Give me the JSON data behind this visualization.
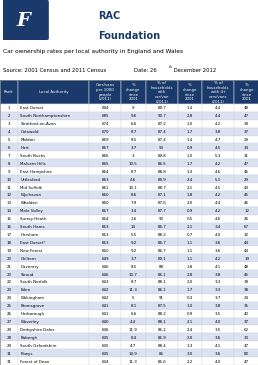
{
  "title_line1": "Car ownership rates per local authority in England and Wales",
  "source": "Source: 2001 Census and 2011 Census",
  "date": "Date: 26",
  "date_super": "th",
  "date_rest": " December 2012",
  "col_headers": [
    "Rank",
    "Local Authority",
    "Cars/vans\nper 1000\npeople\n(2011)",
    "%\nchange\nsince\n2001",
    "% of\nhouseholds\nwith\ncar/van\n(2011)",
    "%\nchange\nsince\n2001",
    "% of\nhouseholds\nwith 4+\ncars/vans\n(2011)",
    "%\nchange\nsince\n2001"
  ],
  "rows": [
    [
      1,
      "East Dorset",
      694,
      9,
      89.7,
      1.4,
      4.4,
      48
    ],
    [
      2,
      "South Northamptonshire",
      685,
      9.6,
      90.7,
      2.8,
      4.4,
      47
    ],
    [
      3,
      "Stratford-on-Avon",
      674,
      6.6,
      87.2,
      1.0,
      4.2,
      39
    ],
    [
      4,
      "Cotswold",
      670,
      8.7,
      87.4,
      1.7,
      3.8,
      37
    ],
    [
      5,
      "Maldon",
      669,
      8.5,
      87.4,
      1.4,
      4.7,
      29
    ],
    [
      6,
      "Hart",
      667,
      3.7,
      93,
      0.9,
      4.5,
      34
    ],
    [
      7,
      "South Bucks",
      666,
      3,
      89.8,
      1.0,
      5.3,
      31
    ],
    [
      8,
      "Malvern Hills",
      665,
      10.5,
      86.5,
      1.7,
      4.2,
      47
    ],
    [
      9,
      "East Hampshire",
      664,
      8.7,
      88.8,
      1.3,
      4.6,
      46
    ],
    [
      10,
      "Uttlesford",
      663,
      4.6,
      89.9,
      2.4,
      5.1,
      29
    ],
    [
      11,
      "Mid Suffolk",
      661,
      10.1,
      88.7,
      2.1,
      4.5,
      43
    ],
    [
      12,
      "Wychavon",
      660,
      8.6,
      87.1,
      1.8,
      4.2,
      45
    ],
    [
      13,
      "Wealden",
      660,
      7.9,
      87.6,
      2.0,
      4.4,
      46
    ],
    [
      14,
      "Mole Valley",
      657,
      3.4,
      87.7,
      0.9,
      4.2,
      12
    ],
    [
      15,
      "Surrey Heath",
      654,
      1.6,
      90,
      0.5,
      4.6,
      26
    ],
    [
      16,
      "South Hams",
      653,
      14,
      86.7,
      2.1,
      3.4,
      67
    ],
    [
      17,
      "Horsham",
      653,
      5.5,
      88.2,
      0.7,
      4.0,
      32
    ],
    [
      18,
      "East Dorset*",
      653,
      9.2,
      86.7,
      1.1,
      3.6,
      44
    ],
    [
      19,
      "New Forest",
      650,
      9.2,
      86.7,
      1.1,
      3.6,
      44
    ],
    [
      20,
      "Chiltern",
      649,
      3.7,
      89.1,
      1.1,
      4.2,
      19
    ],
    [
      21,
      "Daventry",
      646,
      8.5,
      88,
      1.8,
      4.1,
      48
    ],
    [
      20,
      "Stroud",
      646,
      10.7,
      86.1,
      2.8,
      3.8,
      45
    ],
    [
      22,
      "South Norfolk",
      643,
      8.7,
      88.1,
      2.0,
      3.3,
      39
    ],
    [
      23,
      "Eden",
      642,
      11.3,
      86.1,
      1.7,
      3.3,
      38
    ],
    [
      24,
      "Wokingham",
      642,
      5,
      91,
      0.3,
      3.7,
      24
    ],
    [
      25,
      "Bromsgrove",
      641,
      8.1,
      87.5,
      1.0,
      3.8,
      35
    ],
    [
      26,
      "Harborough",
      641,
      6.6,
      88.2,
      0.9,
      3.5,
      40
    ],
    [
      27,
      "Waverley",
      640,
      4.4,
      88.1,
      2.1,
      4.0,
      37
    ],
    [
      29,
      "Derbyshire Dales",
      636,
      11.9,
      85.2,
      2.4,
      3.5,
      62
    ],
    [
      28,
      "Babergh",
      635,
      8.4,
      85.9,
      2.0,
      3.6,
      33
    ],
    [
      29,
      "South Oxfordshire",
      635,
      4.7,
      88.4,
      1.3,
      4.1,
      47
    ],
    [
      31,
      "Powys",
      635,
      14.9,
      85,
      3.0,
      3.6,
      80
    ],
    [
      31,
      "Forest of Dean",
      634,
      11.3,
      85.6,
      2.2,
      4.0,
      47
    ]
  ],
  "header_bg": "#1a3a6b",
  "header_fg": "#ffffff",
  "alt_row_bg": "#d9e1f2",
  "normal_row_bg": "#ffffff",
  "border_color": "#aaaaaa",
  "rac_blue": "#1a3a6b"
}
